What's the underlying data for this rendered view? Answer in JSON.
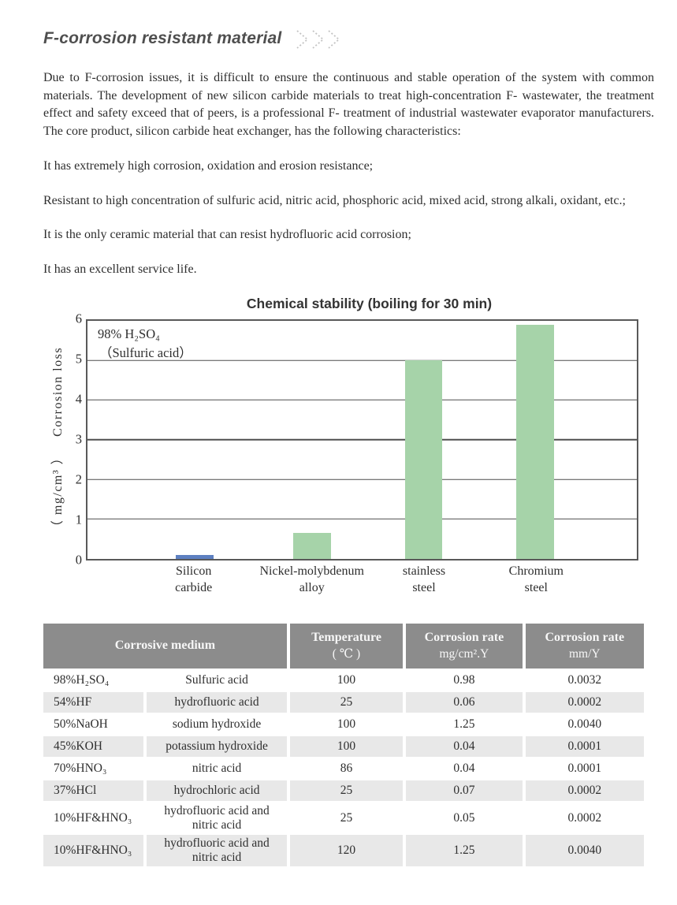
{
  "header": {
    "title": "F-corrosion resistant material"
  },
  "paragraphs": [
    "Due to F-corrosion issues, it is difficult to ensure the continuous and stable operation of the system with common materials. The development of new silicon carbide materials to treat high-concentration F- wastewater, the treatment effect and safety exceed that of peers, is a professional F- treatment of industrial wastewater evaporator manufacturers. The core product, silicon carbide heat exchanger, has the following characteristics:",
    "It has extremely high corrosion, oxidation and erosion resistance;",
    "Resistant to high concentration of sulfuric acid, nitric acid, phosphoric acid, mixed acid, strong alkali, oxidant, etc.;",
    "It is the only ceramic material that can resist hydrofluoric acid corrosion;",
    "It has an excellent service life."
  ],
  "chart_data": {
    "type": "bar",
    "title": "Chemical stability (boiling for 30 min)",
    "annotation_line1": "98%  H₂SO₄",
    "annotation_line2": "（Sulfuric acid）",
    "ylabel": "Corrosion loss",
    "ylabel_unit": "（ mg/cm³ ）",
    "categories": [
      "Silicon carbide",
      "Nickel-molybdenum alloy",
      "stainless steel",
      "Chromium steel"
    ],
    "category_lines": [
      [
        "Silicon",
        "carbide"
      ],
      [
        "Nickel-molybdenum",
        "alloy"
      ],
      [
        "stainless",
        "steel"
      ],
      [
        "Chromium",
        "steel"
      ]
    ],
    "values": [
      0.1,
      0.65,
      5.0,
      5.9
    ],
    "ylim": [
      0,
      6
    ],
    "yticks": [
      0,
      1,
      2,
      3,
      4,
      5,
      6
    ],
    "grid": true,
    "legend": "none",
    "bar_colors": [
      "#5d80c1",
      "#a6d3a9",
      "#a6d3a9",
      "#a6d3a9"
    ],
    "bar_centers_pct": [
      19.5,
      40.9,
      61.2,
      81.5
    ],
    "bar_width_pct": 6.8
  },
  "table": {
    "header": {
      "corrosive_medium": "Corrosive medium",
      "temperature_line1": "Temperature",
      "temperature_line2": "( ℃ )",
      "rate_mg_line1": "Corrosion rate",
      "rate_mg_line2": "mg/cm².Y",
      "rate_mm_line1": "Corrosion rate",
      "rate_mm_line2": "mm/Y"
    },
    "rows": [
      {
        "formula": "98%H₂SO₄",
        "name": "Sulfuric acid",
        "temperature": "100",
        "rate_mg": "0.98",
        "rate_mm": "0.0032"
      },
      {
        "formula": "54%HF",
        "name": "hydrofluoric acid",
        "temperature": "25",
        "rate_mg": "0.06",
        "rate_mm": "0.0002"
      },
      {
        "formula": "50%NaOH",
        "name": "sodium hydroxide",
        "temperature": "100",
        "rate_mg": "1.25",
        "rate_mm": "0.0040"
      },
      {
        "formula": "45%KOH",
        "name": "potassium hydroxide",
        "temperature": "100",
        "rate_mg": "0.04",
        "rate_mm": "0.0001"
      },
      {
        "formula": "70%HNO₃",
        "name": "nitric acid",
        "temperature": "86",
        "rate_mg": "0.04",
        "rate_mm": "0.0001"
      },
      {
        "formula": "37%HCl",
        "name": "hydrochloric acid",
        "temperature": "25",
        "rate_mg": "0.07",
        "rate_mm": "0.0002"
      },
      {
        "formula": "10%HF&HNO₃",
        "name": "hydrofluoric acid and nitric acid",
        "temperature": "25",
        "rate_mg": "0.05",
        "rate_mm": "0.0002"
      },
      {
        "formula": "10%HF&HNO₃",
        "name": "hydrofluoric acid and nitric acid",
        "temperature": "120",
        "rate_mg": "1.25",
        "rate_mm": "0.0040"
      }
    ]
  },
  "colors": {
    "accent_green": "#a6d3a9",
    "accent_blue": "#5d80c1",
    "table_header_bg": "#8c8c8c",
    "table_alt_row_bg": "#e8e8e8",
    "chart_line": "#4f4f4f",
    "text": "#2e2e2e"
  }
}
